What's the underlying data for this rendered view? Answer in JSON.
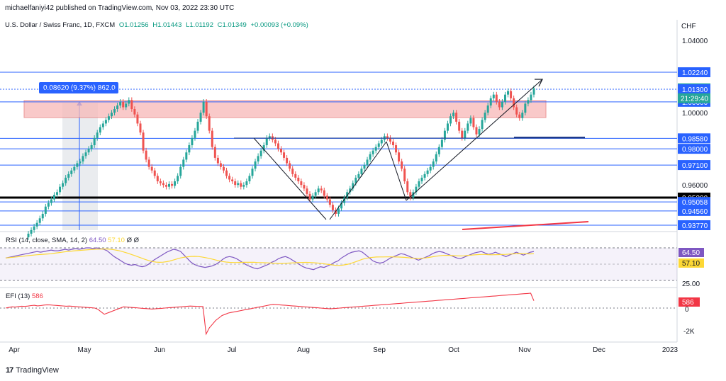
{
  "header": {
    "published": "michaelfaniyi42 published on TradingView.com, Nov 03, 2022 23:30 UTC"
  },
  "symbol": {
    "name": "U.S. Dollar / Swiss Franc, 1D, FXCM",
    "o": "O1.01256",
    "h": "H1.01443",
    "l": "L1.01192",
    "c": "C1.01349",
    "chg": "+0.00093 (+0.09%)"
  },
  "currency": "CHF",
  "measure_label": "0.08620 (9.37%) 862.0",
  "rsi": {
    "label": "RSI (14, close, SMA, 14, 2)",
    "v1": "64.50",
    "v2": "57.10",
    "extra": "Ø Ø",
    "badge_rsi": "64.50",
    "badge_sma": "57.10",
    "level": "25.00"
  },
  "efi": {
    "label": "EFI (13)",
    "value": "586",
    "badge": "586",
    "zero": "0",
    "neg": "-2K"
  },
  "footer": {
    "brand": "TradingView"
  },
  "colors": {
    "up": "#26a69a",
    "down": "#ef5350",
    "level": "#2962ff",
    "rsi": "#7e57c2",
    "rsi_ma": "#fdd835",
    "efi": "#f23645"
  },
  "chart_data": {
    "type": "candlestick",
    "y_axis_labels": [
      "1.04000",
      "1.02240",
      "1.01349",
      "1.01300",
      "1.00600",
      "1.00000",
      "0.98580",
      "0.98000",
      "0.97100",
      "0.96000",
      "0.95300",
      "0.95058",
      "0.94560",
      "0.93770"
    ],
    "countdown": "21:29:40",
    "horizontal_levels": [
      1.0224,
      1.013,
      1.006,
      0.9858,
      0.98,
      0.971,
      0.953,
      0.95058,
      0.9456,
      0.9377
    ],
    "x_ticks": [
      "Apr",
      "May",
      "Jun",
      "Jul",
      "Aug",
      "Sep",
      "Oct",
      "Nov",
      "Dec",
      "2023"
    ],
    "closes": [
      0.933,
      0.935,
      0.937,
      0.939,
      0.9415,
      0.944,
      0.948,
      0.95,
      0.952,
      0.9545,
      0.956,
      0.959,
      0.961,
      0.964,
      0.966,
      0.968,
      0.97,
      0.972,
      0.973,
      0.976,
      0.978,
      0.98,
      0.982,
      0.986,
      0.989,
      0.992,
      0.994,
      0.996,
      0.998,
      1.0,
      1.002,
      1.004,
      1.006,
      1.003,
      1.005,
      1.007,
      1.002,
      0.999,
      0.994,
      0.989,
      0.979,
      0.974,
      0.97,
      0.968,
      0.965,
      0.962,
      0.961,
      0.96,
      0.959,
      0.9605,
      0.9595,
      0.962,
      0.965,
      0.97,
      0.974,
      0.978,
      0.982,
      0.986,
      0.99,
      0.995,
      1.0,
      1.006,
      0.998,
      0.99,
      0.981,
      0.975,
      0.972,
      0.97,
      0.968,
      0.965,
      0.963,
      0.962,
      0.96,
      0.961,
      0.959,
      0.96,
      0.962,
      0.965,
      0.969,
      0.973,
      0.976,
      0.979,
      0.982,
      0.986,
      0.987,
      0.985,
      0.983,
      0.98,
      0.978,
      0.975,
      0.972,
      0.969,
      0.966,
      0.964,
      0.962,
      0.96,
      0.958,
      0.955,
      0.952,
      0.954,
      0.956,
      0.958,
      0.957,
      0.954,
      0.952,
      0.949,
      0.946,
      0.944,
      0.947,
      0.95,
      0.953,
      0.956,
      0.958,
      0.961,
      0.964,
      0.966,
      0.969,
      0.971,
      0.974,
      0.977,
      0.979,
      0.981,
      0.983,
      0.985,
      0.987,
      0.986,
      0.984,
      0.982,
      0.978,
      0.973,
      0.969,
      0.962,
      0.956,
      0.953,
      0.956,
      0.959,
      0.962,
      0.964,
      0.966,
      0.968,
      0.97,
      0.973,
      0.977,
      0.981,
      0.985,
      0.99,
      0.994,
      0.998,
      1.0,
      0.995,
      0.99,
      0.986,
      0.99,
      0.994,
      0.997,
      0.992,
      0.988,
      0.991,
      0.996,
      1.0,
      1.004,
      1.008,
      1.01,
      1.006,
      1.003,
      1.006,
      1.01,
      1.012,
      1.008,
      1.003,
      0.999,
      0.997,
      1.0,
      1.005,
      1.007,
      1.01,
      1.0135
    ],
    "rsi_values": [
      56,
      57,
      58,
      59,
      60,
      61,
      62,
      63,
      64,
      65,
      64,
      65,
      66,
      67,
      66,
      66,
      67,
      68,
      67,
      68,
      69,
      68,
      69,
      70,
      70,
      69,
      70,
      69,
      68,
      66,
      62,
      58,
      55,
      52,
      49,
      47,
      46,
      47,
      45,
      44,
      45,
      48,
      52,
      55,
      58,
      61,
      64,
      66,
      68,
      67,
      65,
      60,
      55,
      50,
      47,
      45,
      44,
      43,
      44,
      45,
      47,
      50,
      54,
      57,
      58,
      57,
      55,
      52,
      49,
      46,
      44,
      42,
      41,
      43,
      45,
      47,
      50,
      52,
      55,
      57,
      58,
      56,
      53,
      50,
      47,
      44,
      42,
      41,
      40,
      42,
      44,
      43,
      45,
      47,
      50,
      52,
      56,
      59,
      62,
      64,
      65,
      66,
      64,
      60,
      56,
      52,
      50,
      49,
      50,
      53,
      56,
      58,
      60,
      62,
      61,
      59,
      57,
      55,
      53,
      55,
      57,
      59,
      62,
      64,
      65,
      64,
      62,
      60,
      58,
      56,
      55,
      57,
      59,
      61,
      63,
      64,
      65,
      63,
      61,
      62,
      64,
      62,
      60,
      58,
      60,
      62,
      64,
      62,
      60,
      62,
      64,
      65
    ],
    "efi_values": [
      0,
      50,
      100,
      80,
      120,
      150,
      130,
      160,
      200,
      220,
      180,
      200,
      240,
      260,
      250,
      230,
      210,
      190,
      170,
      150,
      160,
      140,
      120,
      100,
      80,
      60,
      40,
      20,
      0,
      -100,
      -300,
      -500,
      -400,
      -300,
      -200,
      -100,
      0,
      100,
      80,
      60,
      40,
      20,
      0,
      -20,
      -40,
      -60,
      -80,
      -60,
      -40,
      -20,
      0,
      20,
      40,
      60,
      80,
      100,
      120,
      140,
      160,
      150,
      140,
      130,
      120,
      -2100,
      -1600,
      -1300,
      -1000,
      -800,
      -600,
      -500,
      -400,
      -350,
      -300,
      -250,
      -200,
      -150,
      -100,
      -50,
      0,
      50,
      100,
      150,
      200,
      250,
      300,
      280,
      260,
      240,
      220,
      200,
      180,
      160,
      140,
      120,
      100,
      80,
      60,
      40,
      20,
      0,
      -20,
      -40,
      -60,
      -40,
      -20,
      0,
      20,
      40,
      60,
      80,
      100,
      120,
      140,
      160,
      180,
      200,
      220,
      240,
      260,
      280,
      300,
      320,
      340,
      360,
      380,
      400,
      420,
      440,
      460,
      480,
      500,
      520,
      540,
      560,
      580,
      600,
      620,
      640,
      660,
      680,
      700,
      720,
      740,
      760,
      780,
      800,
      820,
      840,
      860,
      880,
      900,
      920,
      940,
      960,
      980,
      1000,
      1020,
      1040,
      1060,
      1080,
      1100,
      1120,
      1140,
      1160,
      1180,
      1200,
      586
    ]
  }
}
